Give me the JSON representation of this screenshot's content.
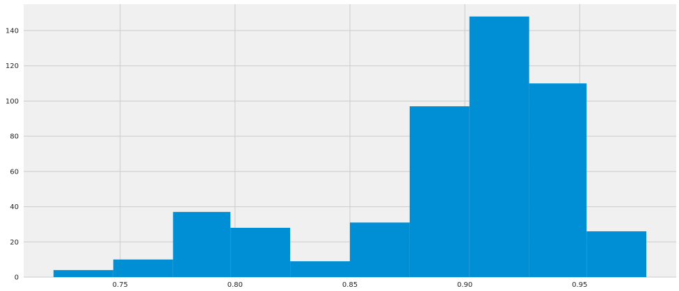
{
  "chart_data": {
    "type": "bar",
    "subtype": "histogram",
    "title": "",
    "xlabel": "",
    "ylabel": "",
    "bins": [
      {
        "x0": 0.721,
        "x1": 0.747,
        "count": 4
      },
      {
        "x0": 0.747,
        "x1": 0.773,
        "count": 10
      },
      {
        "x0": 0.773,
        "x1": 0.798,
        "count": 37
      },
      {
        "x0": 0.798,
        "x1": 0.824,
        "count": 28
      },
      {
        "x0": 0.824,
        "x1": 0.85,
        "count": 9
      },
      {
        "x0": 0.85,
        "x1": 0.876,
        "count": 31
      },
      {
        "x0": 0.876,
        "x1": 0.902,
        "count": 97
      },
      {
        "x0": 0.902,
        "x1": 0.928,
        "count": 148
      },
      {
        "x0": 0.928,
        "x1": 0.953,
        "count": 110
      },
      {
        "x0": 0.953,
        "x1": 0.979,
        "count": 26
      }
    ],
    "xlim": [
      0.708,
      0.992
    ],
    "ylim": [
      0,
      155
    ],
    "x_ticks": [
      0.75,
      0.8,
      0.85,
      0.9,
      0.95
    ],
    "x_tick_labels": [
      "0.75",
      "0.80",
      "0.85",
      "0.90",
      "0.95"
    ],
    "y_ticks": [
      0,
      20,
      40,
      60,
      80,
      100,
      120,
      140
    ],
    "y_tick_labels": [
      "0",
      "20",
      "40",
      "60",
      "80",
      "100",
      "120",
      "140"
    ],
    "grid": true,
    "legend": "none"
  },
  "colors": {
    "bar": "#008fd5",
    "background": "#f0f0f0",
    "grid": "#cbcbcb",
    "text": "#222222"
  }
}
